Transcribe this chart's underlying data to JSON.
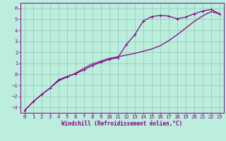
{
  "xlabel": "Windchill (Refroidissement éolien,°C)",
  "bg_color": "#bbeedd",
  "grid_color": "#99ccbb",
  "line_color": "#880088",
  "xlim": [
    -0.5,
    23.5
  ],
  "ylim": [
    -3.5,
    6.5
  ],
  "xticks": [
    0,
    1,
    2,
    3,
    4,
    5,
    6,
    7,
    8,
    9,
    10,
    11,
    12,
    13,
    14,
    15,
    16,
    17,
    18,
    19,
    20,
    21,
    22,
    23
  ],
  "yticks": [
    -3,
    -2,
    -1,
    0,
    1,
    2,
    3,
    4,
    5,
    6
  ],
  "curve1_x": [
    0,
    1,
    2,
    3,
    4,
    5,
    6,
    7,
    8,
    9,
    10,
    11,
    12,
    13,
    14,
    15,
    16,
    17,
    18,
    19,
    20,
    21,
    22,
    23
  ],
  "curve1_y": [
    -3.3,
    -2.5,
    -1.85,
    -1.25,
    -0.5,
    -0.2,
    0.05,
    0.4,
    0.8,
    1.1,
    1.35,
    1.5,
    2.7,
    3.6,
    4.85,
    5.25,
    5.35,
    5.3,
    5.05,
    5.2,
    5.5,
    5.75,
    5.9,
    5.5
  ],
  "curve2_x": [
    0,
    1,
    2,
    3,
    4,
    5,
    6,
    7,
    8,
    9,
    10,
    11,
    12,
    13,
    14,
    15,
    16,
    17,
    18,
    19,
    20,
    21,
    22,
    23
  ],
  "curve2_y": [
    -3.3,
    -2.5,
    -1.85,
    -1.25,
    -0.6,
    -0.25,
    0.1,
    0.55,
    0.95,
    1.2,
    1.45,
    1.6,
    1.75,
    1.9,
    2.1,
    2.3,
    2.6,
    3.05,
    3.6,
    4.2,
    4.8,
    5.3,
    5.7,
    5.5
  ],
  "xlabel_fontsize": 5.5,
  "tick_fontsize": 5.2,
  "lw": 0.9
}
